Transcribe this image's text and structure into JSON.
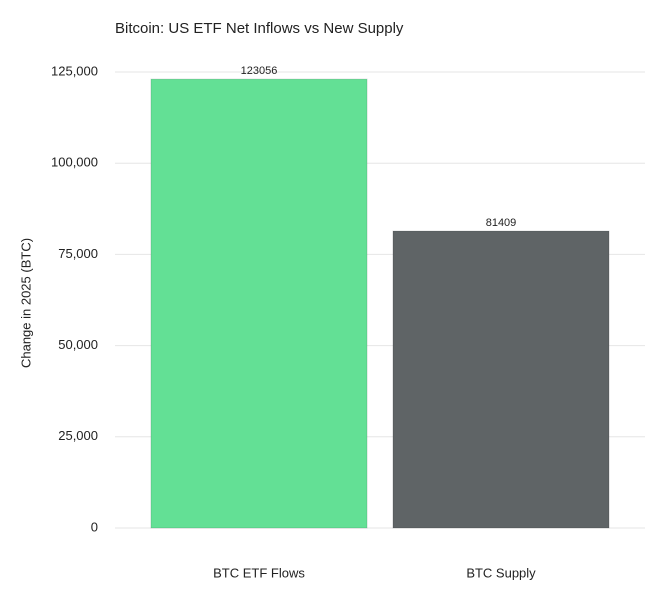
{
  "chart_data": {
    "type": "bar",
    "title": "Bitcoin: US ETF Net Inflows vs New Supply",
    "y_label": "Change in 2025 (BTC)",
    "categories": [
      "BTC ETF Flows",
      "BTC Supply"
    ],
    "values": [
      123056,
      81409
    ],
    "colors": [
      "#63e095",
      "#5f6466"
    ],
    "ylim": [
      0,
      125000
    ],
    "yticks": [
      0,
      {
        "value": 25000,
        "label": "25,000"
      },
      {
        "value": 50000,
        "label": "50,000"
      },
      {
        "value": 75000,
        "label": "75,000"
      },
      {
        "value": 100000,
        "label": "100,000"
      },
      {
        "value": 125000,
        "label": "125,000"
      }
    ],
    "grid": true
  }
}
